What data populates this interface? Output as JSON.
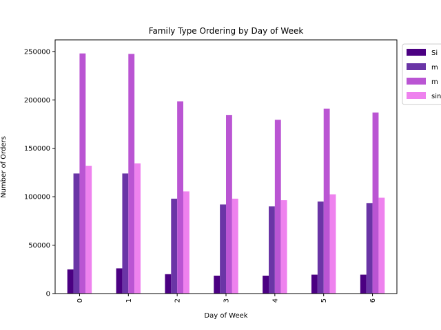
{
  "chart_data": {
    "type": "bar",
    "title": "Family Type Ordering by Day of Week",
    "xlabel": "Day of Week",
    "ylabel": "Number of Orders",
    "categories": [
      "0",
      "1",
      "2",
      "3",
      "4",
      "5",
      "6"
    ],
    "ylim": [
      0,
      262000
    ],
    "yticks": [
      0,
      50000,
      100000,
      150000,
      200000,
      250000
    ],
    "grid": false,
    "legend_position": "upper right, outside plot area (clipped)",
    "series": [
      {
        "name": "Si",
        "color": "#4b0082",
        "values": [
          25000,
          26000,
          20000,
          18500,
          18500,
          19500,
          19500
        ]
      },
      {
        "name": "m",
        "color": "#6a35a6",
        "values": [
          124000,
          124000,
          98000,
          92000,
          90000,
          95000,
          93500
        ]
      },
      {
        "name": "m",
        "color": "#ba55d3",
        "values": [
          248000,
          247500,
          198500,
          184500,
          179500,
          191000,
          187000
        ]
      },
      {
        "name": "sin",
        "color": "#ee82ee",
        "values": [
          132000,
          134500,
          105500,
          98000,
          96500,
          102500,
          99000
        ]
      }
    ]
  }
}
